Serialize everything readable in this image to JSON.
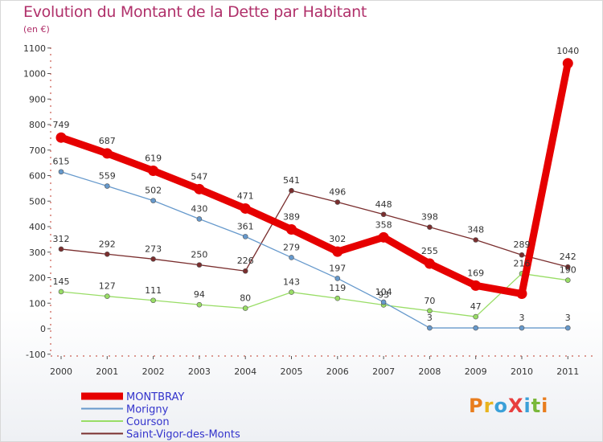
{
  "header": {
    "title": "Evolution du Montant de la Dette par Habitant",
    "unit": "(en €)"
  },
  "logo": {
    "text": "ProXiti",
    "colors": [
      "#e87d1e",
      "#e8b41e",
      "#3aa0d8",
      "#e83e3e",
      "#3aa0d8",
      "#7ab83a",
      "#e87d1e"
    ]
  },
  "chart_data": {
    "type": "line",
    "title": "Evolution du Montant de la Dette par Habitant",
    "subtitle": "(en €)",
    "xlabel": "",
    "ylabel": "",
    "x": [
      "2000",
      "2001",
      "2002",
      "2003",
      "2004",
      "2005",
      "2006",
      "2007",
      "2008",
      "2009",
      "2010",
      "2011"
    ],
    "ylim": [
      -100,
      1100
    ],
    "yticks": [
      "-100",
      "0",
      "100",
      "200",
      "300",
      "400",
      "500",
      "600",
      "700",
      "800",
      "900",
      "1000",
      "1100"
    ],
    "grid": false,
    "legend_position": "bottom-left",
    "series": [
      {
        "name": "MONTBRAY",
        "color": "#e60000",
        "values": [
          749,
          687,
          619,
          547,
          471,
          389,
          302,
          358,
          255,
          169,
          137,
          1040
        ],
        "labels": [
          "749",
          "687",
          "619",
          "547",
          "471",
          "389",
          "302",
          "358",
          "255",
          "169",
          "",
          "1040"
        ]
      },
      {
        "name": "Morigny",
        "color": "#6699cc",
        "values": [
          615,
          559,
          502,
          430,
          361,
          279,
          197,
          104,
          3,
          3,
          3,
          3
        ],
        "labels": [
          "615",
          "559",
          "502",
          "430",
          "361",
          "279",
          "197",
          "104",
          "3",
          "",
          "3",
          "3"
        ]
      },
      {
        "name": "Courson",
        "color": "#99dd66",
        "values": [
          145,
          127,
          111,
          94,
          80,
          143,
          119,
          93,
          70,
          47,
          216,
          190
        ],
        "labels": [
          "145",
          "127",
          "111",
          "94",
          "80",
          "143",
          "119",
          "93",
          "70",
          "47",
          "216",
          "190"
        ]
      },
      {
        "name": "Saint-Vigor-des-Monts",
        "color": "#7a2e2e",
        "values": [
          312,
          292,
          273,
          250,
          226,
          541,
          496,
          448,
          398,
          348,
          289,
          242
        ],
        "labels": [
          "312",
          "292",
          "273",
          "250",
          "226",
          "541",
          "496",
          "448",
          "398",
          "348",
          "289",
          "242"
        ]
      }
    ]
  }
}
